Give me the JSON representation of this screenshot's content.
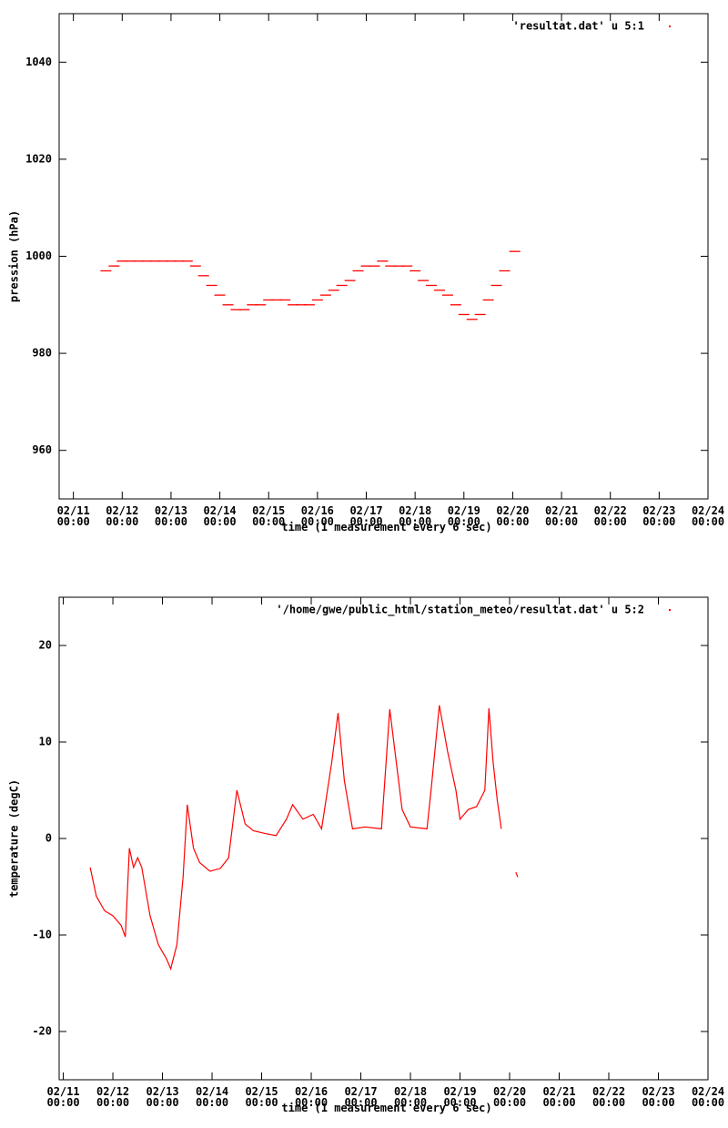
{
  "chart_data": [
    {
      "type": "scatter",
      "ylabel": "pression (hPa)",
      "xlabel": "time (1 measurement every 6 sec)",
      "legend": "top right",
      "series": [
        {
          "name": "'resultat.dat' u 5:1",
          "color": "#ff0000",
          "x": [
            "02/11 16:00",
            "02/11 20:00",
            "02/12 00:00",
            "02/12 04:00",
            "02/12 08:00",
            "02/12 12:00",
            "02/12 16:00",
            "02/12 20:00",
            "02/13 00:00",
            "02/13 04:00",
            "02/13 08:00",
            "02/13 12:00",
            "02/13 16:00",
            "02/13 20:00",
            "02/14 00:00",
            "02/14 04:00",
            "02/14 08:00",
            "02/14 12:00",
            "02/14 16:00",
            "02/14 20:00",
            "02/15 00:00",
            "02/15 04:00",
            "02/15 08:00",
            "02/15 12:00",
            "02/15 16:00",
            "02/15 20:00",
            "02/16 00:00",
            "02/16 04:00",
            "02/16 08:00",
            "02/16 12:00",
            "02/16 16:00",
            "02/16 20:00",
            "02/17 00:00",
            "02/17 04:00",
            "02/17 08:00",
            "02/17 12:00",
            "02/17 16:00",
            "02/17 20:00",
            "02/18 00:00",
            "02/18 04:00",
            "02/18 08:00",
            "02/18 12:00",
            "02/18 16:00",
            "02/18 20:00",
            "02/19 00:00",
            "02/19 04:00",
            "02/19 08:00",
            "02/19 12:00",
            "02/19 16:00",
            "02/19 20:00",
            "02/20 01:00"
          ],
          "values": [
            997,
            998,
            999,
            999,
            999,
            999,
            999,
            999,
            999,
            999,
            999,
            998,
            996,
            994,
            992,
            990,
            989,
            989,
            990,
            990,
            991,
            991,
            991,
            990,
            990,
            990,
            991,
            992,
            993,
            994,
            995,
            997,
            998,
            998,
            999,
            998,
            998,
            998,
            997,
            995,
            994,
            993,
            992,
            990,
            988,
            987,
            988,
            991,
            994,
            997,
            1001
          ]
        }
      ],
      "xlim": [
        "02/10 17:00",
        "02/24 00:00"
      ],
      "xticks": [
        "02/11 00:00",
        "02/12 00:00",
        "02/13 00:00",
        "02/14 00:00",
        "02/15 00:00",
        "02/16 00:00",
        "02/17 00:00",
        "02/18 00:00",
        "02/19 00:00",
        "02/20 00:00",
        "02/21 00:00",
        "02/22 00:00",
        "02/23 00:00",
        "02/24 00:00"
      ],
      "ylim": [
        950,
        1050
      ],
      "yticks": [
        960,
        980,
        1000,
        1020,
        1040
      ]
    },
    {
      "type": "line",
      "ylabel": "temperature (degC)",
      "xlabel": "time (1 measurement every 6 sec)",
      "legend": "top right",
      "series": [
        {
          "name": "'/home/gwe/public_html/station_meteo/resultat.dat' u 5:2",
          "color": "#ff0000",
          "x": [
            "02/11 13:00",
            "02/11 16:00",
            "02/11 20:00",
            "02/12 00:00",
            "02/12 04:00",
            "02/12 06:00",
            "02/12 08:00",
            "02/12 10:00",
            "02/12 12:00",
            "02/12 14:00",
            "02/12 18:00",
            "02/12 22:00",
            "02/13 02:00",
            "02/13 04:00",
            "02/13 07:00",
            "02/13 10:00",
            "02/13 12:00",
            "02/13 15:00",
            "02/13 18:00",
            "02/13 23:00",
            "02/14 04:00",
            "02/14 08:00",
            "02/14 12:00",
            "02/14 16:00",
            "02/14 20:00",
            "02/15 02:00",
            "02/15 07:00",
            "02/15 12:00",
            "02/15 15:00",
            "02/15 20:00",
            "02/16 01:00",
            "02/16 05:00",
            "02/16 10:00",
            "02/16 13:00",
            "02/16 16:00",
            "02/16 20:00",
            "02/17 02:00",
            "02/17 10:00",
            "02/17 14:00",
            "02/17 20:00",
            "02/18 00:00",
            "02/18 08:00",
            "02/18 10:00",
            "02/18 14:00",
            "02/18 18:00",
            "02/18 22:00",
            "02/19 00:00",
            "02/19 04:00",
            "02/19 08:00",
            "02/19 12:00",
            "02/19 14:00",
            "02/19 16:00",
            "02/19 18:00",
            "02/19 20:00",
            "02/20 00:00",
            "02/20 03:00",
            "02/20 04:00"
          ],
          "values": [
            -3,
            -6,
            -7.5,
            -8,
            -9,
            -10.2,
            -1,
            -3,
            -2,
            -3,
            -8,
            -11,
            -12.5,
            -13.5,
            -11,
            -4,
            3.5,
            -1,
            -2.5,
            -3.4,
            -3.1,
            -2,
            5,
            1.5,
            0.8,
            0.5,
            0.3,
            2,
            3.5,
            2,
            2.5,
            1,
            8,
            13,
            6,
            1,
            1.2,
            1,
            13.4,
            3,
            1.2,
            1,
            5,
            13.8,
            9,
            5,
            2,
            3,
            3.3,
            5,
            13.5,
            8,
            4,
            1,
            null,
            -3.5,
            -4
          ]
        }
      ],
      "xlim": [
        "02/10 22:00",
        "02/24 00:00"
      ],
      "xticks": [
        "02/11 00:00",
        "02/12 00:00",
        "02/13 00:00",
        "02/14 00:00",
        "02/15 00:00",
        "02/16 00:00",
        "02/17 00:00",
        "02/18 00:00",
        "02/19 00:00",
        "02/20 00:00",
        "02/21 00:00",
        "02/22 00:00",
        "02/23 00:00",
        "02/24 00:00"
      ],
      "ylim": [
        -25,
        25
      ],
      "yticks": [
        -20,
        -10,
        0,
        10,
        20
      ]
    }
  ]
}
